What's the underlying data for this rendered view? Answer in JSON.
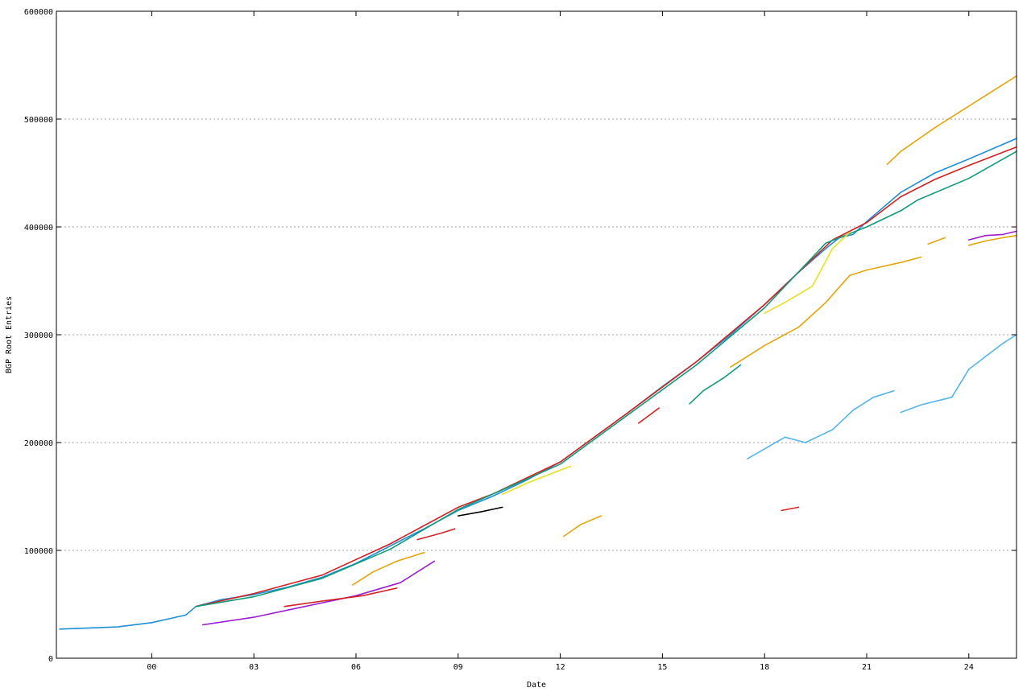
{
  "chart_data": {
    "type": "line",
    "xlabel": "Date",
    "ylabel": "BGP Root Entries",
    "xlim": [
      -2.8,
      25.4
    ],
    "ylim": [
      0,
      600000
    ],
    "x_ticks": [
      0,
      3,
      6,
      9,
      12,
      15,
      18,
      21,
      24
    ],
    "x_tick_labels": [
      "00",
      "03",
      "06",
      "09",
      "12",
      "15",
      "18",
      "21",
      "24"
    ],
    "y_ticks": [
      0,
      100000,
      200000,
      300000,
      400000,
      500000,
      600000
    ],
    "y_tick_labels": [
      "0",
      "100000",
      "200000",
      "300000",
      "400000",
      "500000",
      "600000"
    ],
    "grid": true,
    "series": [
      {
        "color": "#1f8fd8",
        "x": [
          -2.7,
          -1,
          0,
          1,
          1.3,
          2,
          3,
          4,
          5,
          6,
          7,
          8,
          9,
          10,
          11,
          12,
          13,
          14,
          15,
          16,
          17,
          18,
          19,
          19.8,
          20.2,
          20.6,
          21,
          22,
          23,
          24,
          25.4
        ],
        "y": [
          27000,
          29000,
          33000,
          40000,
          48000,
          54000,
          59000,
          66000,
          75000,
          88000,
          104000,
          120000,
          137000,
          150000,
          165000,
          182000,
          205000,
          228000,
          252000,
          275000,
          300000,
          328000,
          358000,
          380000,
          390000,
          393000,
          405000,
          432000,
          450000,
          463000,
          482000
        ]
      },
      {
        "color": "#d42020",
        "x": [
          1.3,
          3,
          5,
          7,
          9,
          10,
          12,
          14,
          16,
          18,
          20,
          21,
          22,
          23,
          24,
          25.4
        ],
        "y": [
          48000,
          60000,
          77000,
          106000,
          140000,
          152000,
          182000,
          228000,
          275000,
          328000,
          388000,
          404000,
          428000,
          444000,
          457000,
          474000
        ]
      },
      {
        "color": "#109a78",
        "x": [
          1.3,
          3,
          5,
          7,
          9,
          12,
          14,
          16,
          18,
          19.8,
          21,
          22,
          22.5,
          24,
          25.4
        ],
        "y": [
          48000,
          57000,
          74000,
          101000,
          138000,
          180000,
          226000,
          272000,
          325000,
          385000,
          400000,
          415000,
          425000,
          445000,
          470000
        ]
      },
      {
        "color": "#e3a50a",
        "x": [
          21.6,
          22,
          23,
          24,
          25.4
        ],
        "y": [
          458000,
          470000,
          492000,
          512000,
          540000
        ]
      },
      {
        "color": "#e3a50a",
        "x": [
          17,
          18,
          19,
          19.8,
          20.5,
          21,
          22,
          22.6
        ],
        "y": [
          270000,
          290000,
          307000,
          330000,
          355000,
          360000,
          367000,
          372000
        ]
      },
      {
        "color": "#e3a50a",
        "x": [
          22.8,
          23.3
        ],
        "y": [
          384000,
          390000
        ]
      },
      {
        "color": "#e3a50a",
        "x": [
          24,
          24.5,
          25,
          25.4
        ],
        "y": [
          383000,
          387000,
          390000,
          392000
        ]
      },
      {
        "color": "#e3a50a",
        "x": [
          12.1,
          12.6,
          13.2
        ],
        "y": [
          113000,
          124000,
          132000
        ]
      },
      {
        "color": "#e3a50a",
        "x": [
          5.9,
          6.5,
          7.2,
          8
        ],
        "y": [
          68000,
          80000,
          90000,
          98000
        ]
      },
      {
        "color": "#9b1fd0",
        "x": [
          1.5,
          3,
          4.5,
          6,
          7.3,
          8.3
        ],
        "y": [
          31000,
          38000,
          48000,
          58000,
          70000,
          90000
        ]
      },
      {
        "color": "#9b1fd0",
        "x": [
          24,
          24.5,
          25,
          25.4
        ],
        "y": [
          388000,
          392000,
          393000,
          396000
        ]
      },
      {
        "color": "#55b4e8",
        "x": [
          17.5,
          18.1,
          18.6,
          19.2,
          20,
          20.6,
          21.2,
          21.8
        ],
        "y": [
          185000,
          196000,
          205000,
          200000,
          212000,
          230000,
          242000,
          248000
        ]
      },
      {
        "color": "#55b4e8",
        "x": [
          22,
          22.6,
          23.5,
          24,
          24.5,
          25,
          25.4
        ],
        "y": [
          228000,
          235000,
          242000,
          268000,
          280000,
          292000,
          300000
        ]
      },
      {
        "color": "#e8e020",
        "x": [
          18,
          18.6,
          19.4,
          20,
          20.5
        ],
        "y": [
          320000,
          330000,
          345000,
          380000,
          395000
        ]
      },
      {
        "color": "#e8e020",
        "x": [
          10.3,
          11,
          11.8,
          12.3
        ],
        "y": [
          152000,
          162000,
          172000,
          178000
        ]
      },
      {
        "color": "#109a78",
        "x": [
          15.8,
          16.2,
          16.8,
          17.3
        ],
        "y": [
          236000,
          248000,
          260000,
          272000
        ]
      },
      {
        "color": "#d42020",
        "x": [
          14.3,
          14.6,
          14.9
        ],
        "y": [
          218000,
          225000,
          232000
        ]
      },
      {
        "color": "#d42020",
        "x": [
          3.9,
          5,
          6.2,
          7.2
        ],
        "y": [
          48000,
          53000,
          58000,
          65000
        ]
      },
      {
        "color": "#d42020",
        "x": [
          7.8,
          8.5,
          8.9
        ],
        "y": [
          110000,
          116000,
          120000
        ]
      },
      {
        "color": "#d42020",
        "x": [
          18.5,
          19
        ],
        "y": [
          137000,
          140000
        ]
      },
      {
        "color": "#000000",
        "x": [
          9,
          9.7,
          10.3
        ],
        "y": [
          132000,
          136000,
          140000
        ]
      }
    ]
  }
}
